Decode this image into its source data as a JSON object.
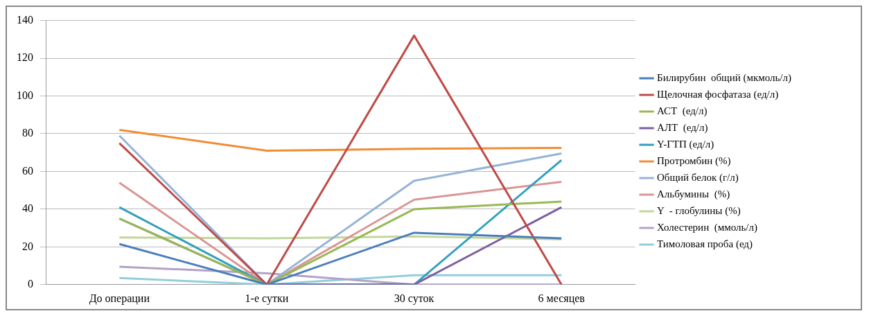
{
  "chart_data": {
    "type": "line",
    "categories": [
      "До операции",
      "1-е сутки",
      "30 суток",
      "6 месяцев"
    ],
    "ylim": [
      0,
      140
    ],
    "yticks": [
      0,
      20,
      40,
      60,
      80,
      100,
      120,
      140
    ],
    "grid": "y",
    "legend": "right",
    "marker": "none",
    "line_style": "solid",
    "series": [
      {
        "name": "Билирубин  общий (мкмоль/л)",
        "color": "#4a7ebb",
        "values": [
          21.5,
          0,
          27.5,
          24.5
        ]
      },
      {
        "name": "Щелочная фосфатаза (ед/л)",
        "color": "#be4b48",
        "values": [
          75,
          0,
          132,
          0
        ]
      },
      {
        "name": "АСТ  (ед/л)",
        "color": "#98b954",
        "values": [
          35,
          0,
          40,
          44
        ]
      },
      {
        "name": "АЛТ  (ед/л)",
        "color": "#7d60a0",
        "values": [
          35,
          0,
          0,
          41
        ]
      },
      {
        "name": "Y-ГТП (ед/л)",
        "color": "#31a0bc",
        "values": [
          41,
          0,
          0,
          66
        ]
      },
      {
        "name": "Протромбин (%)",
        "color": "#f18c34",
        "values": [
          82,
          71,
          72,
          72.5
        ]
      },
      {
        "name": "Общий белок (г/л)",
        "color": "#95b3d7",
        "values": [
          79,
          0,
          55,
          69.5
        ]
      },
      {
        "name": "Альбумины  (%)",
        "color": "#d99694",
        "values": [
          54,
          0,
          45,
          54.5
        ]
      },
      {
        "name": "Y  - глобулины (%)",
        "color": "#c3d69b",
        "values": [
          25,
          24.5,
          25.5,
          24
        ]
      },
      {
        "name": "Холестерин  (ммоль/л)",
        "color": "#b3a2c7",
        "values": [
          9.5,
          6,
          0,
          0
        ]
      },
      {
        "name": "Тимоловая проба (ед)",
        "color": "#93cddd",
        "values": [
          3.5,
          0,
          5,
          5
        ]
      }
    ]
  }
}
